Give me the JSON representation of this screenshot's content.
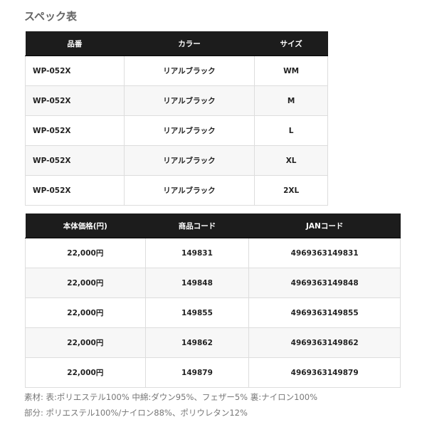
{
  "title": "スペック表",
  "table1": {
    "headers": [
      "品番",
      "カラー",
      "サイズ"
    ],
    "rows": [
      [
        "WP-052X",
        "リアルブラック",
        "WM"
      ],
      [
        "WP-052X",
        "リアルブラック",
        "M"
      ],
      [
        "WP-052X",
        "リアルブラック",
        "L"
      ],
      [
        "WP-052X",
        "リアルブラック",
        "XL"
      ],
      [
        "WP-052X",
        "リアルブラック",
        "2XL"
      ]
    ]
  },
  "table2": {
    "headers": [
      "本体価格(円)",
      "商品コード",
      "JANコード"
    ],
    "rows": [
      [
        "22,000円",
        "149831",
        "4969363149831"
      ],
      [
        "22,000円",
        "149848",
        "4969363149848"
      ],
      [
        "22,000円",
        "149855",
        "4969363149855"
      ],
      [
        "22,000円",
        "149862",
        "4969363149862"
      ],
      [
        "22,000円",
        "149879",
        "4969363149879"
      ]
    ]
  },
  "notes": [
    "素材: 表:ポリエステル100% 中綿:ダウン95%、フェザー5% 裏:ナイロン100%",
    "部分: ポリエステル100%/ナイロン88%、ポリウレタン12%"
  ]
}
